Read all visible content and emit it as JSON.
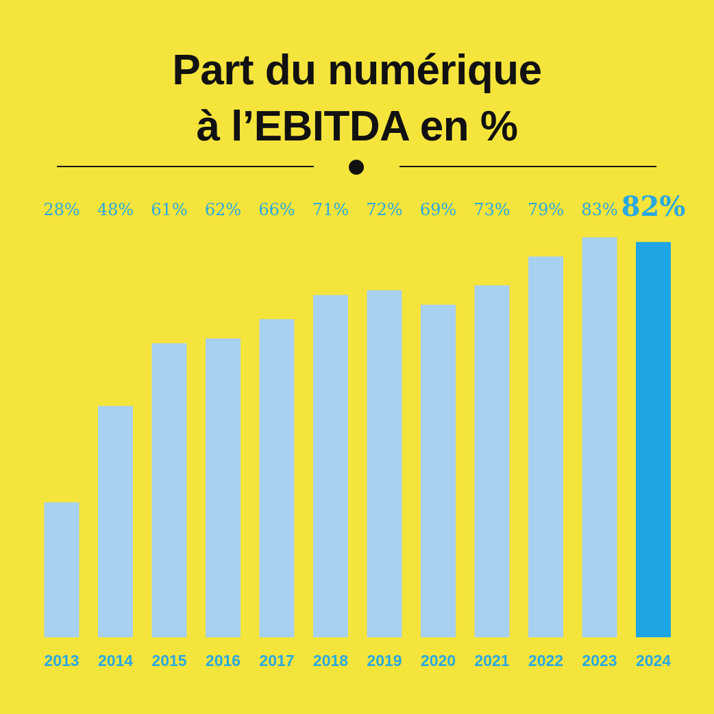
{
  "colors": {
    "background": "#f5e43c",
    "text": "#111111",
    "bar": "#a8d0f0",
    "highlight_bar": "#1ea5e3",
    "label": "#2aa8e0"
  },
  "chart_data": {
    "type": "bar",
    "title_lines": [
      "Part du numérique",
      "à l’EBITDA en %"
    ],
    "categories": [
      "2013",
      "2014",
      "2015",
      "2016",
      "2017",
      "2018",
      "2019",
      "2020",
      "2021",
      "2022",
      "2023",
      "2024"
    ],
    "values": [
      28,
      48,
      61,
      62,
      66,
      71,
      72,
      69,
      73,
      79,
      83,
      82
    ],
    "value_labels": [
      "28%",
      "48%",
      "61%",
      "62%",
      "66%",
      "71%",
      "72%",
      "69%",
      "73%",
      "79%",
      "83%",
      "82%"
    ],
    "highlight_category": "2024",
    "ylim": [
      0,
      89
    ],
    "grid": false,
    "legend": "none"
  }
}
